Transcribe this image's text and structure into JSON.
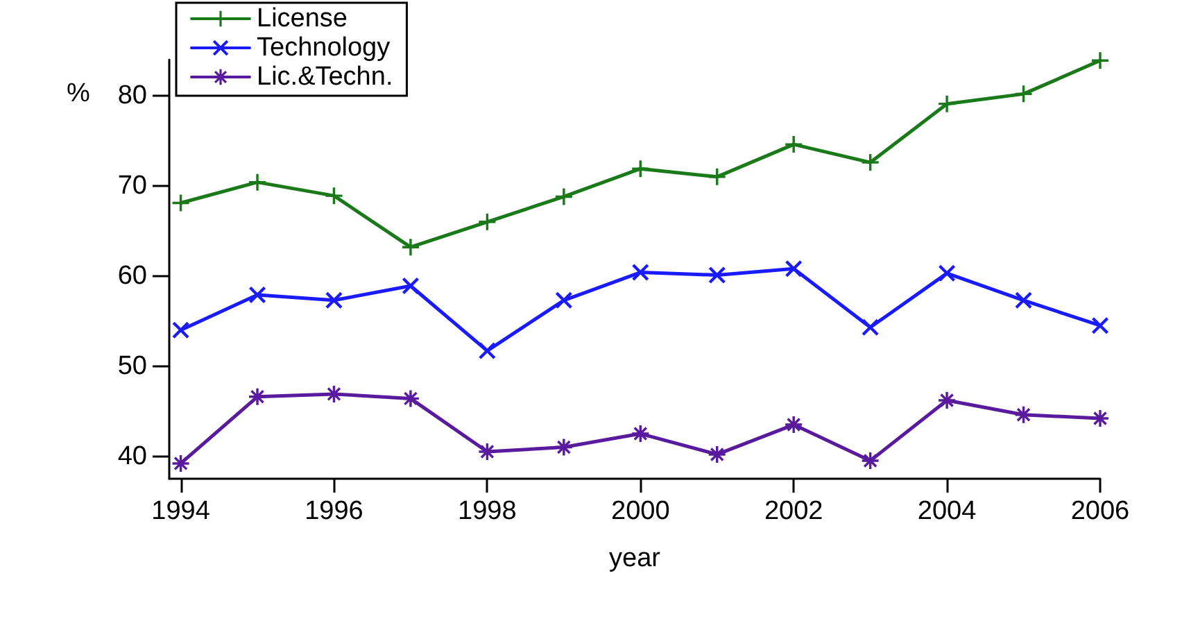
{
  "chart_data": {
    "type": "line",
    "xlabel": "year",
    "ylabel": "%",
    "x": [
      1994,
      1995,
      1996,
      1997,
      1998,
      1999,
      2000,
      2001,
      2002,
      2003,
      2004,
      2005,
      2006
    ],
    "series": [
      {
        "name": "License",
        "color": "#1a7a1a",
        "marker": "cross",
        "values": [
          68.1,
          70.4,
          68.9,
          63.2,
          66.0,
          68.8,
          71.9,
          71.0,
          74.6,
          72.6,
          79.1,
          80.2,
          83.9
        ]
      },
      {
        "name": "Technology",
        "color": "#1a1aff",
        "marker": "x",
        "values": [
          54.0,
          57.9,
          57.3,
          58.9,
          51.7,
          57.3,
          60.4,
          60.1,
          60.8,
          54.3,
          60.3,
          57.3,
          54.5
        ]
      },
      {
        "name": "Lic.&Techn.",
        "color": "#5a1a9e",
        "marker": "star",
        "values": [
          39.2,
          46.6,
          46.9,
          46.4,
          40.5,
          41.0,
          42.5,
          40.2,
          43.5,
          39.5,
          46.2,
          44.6,
          44.2
        ]
      }
    ],
    "xlim": [
      1993.85,
      2006
    ],
    "xticks": [
      1994,
      1996,
      1998,
      2000,
      2002,
      2004,
      2006
    ],
    "ylim": [
      37.5,
      84
    ],
    "yticks": [
      40,
      50,
      60,
      70,
      80
    ],
    "grid": false,
    "legend": "top left",
    "line_style": "solid"
  }
}
